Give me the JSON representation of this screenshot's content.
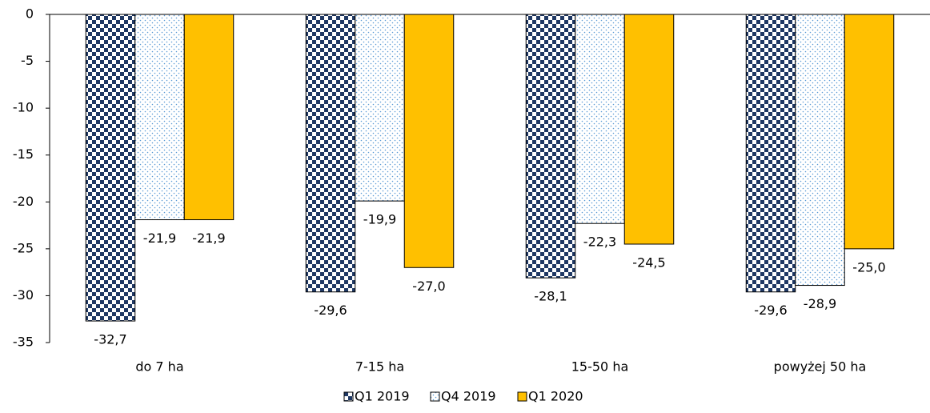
{
  "chart_data": {
    "type": "bar",
    "categories": [
      "do 7 ha",
      "7-15 ha",
      "15-50 ha",
      "powyżej 50 ha"
    ],
    "series": [
      {
        "name": "Q1 2019",
        "color": "#1f3864",
        "values": [
          -32.7,
          -29.6,
          -28.1,
          -29.6
        ],
        "value_labels": [
          "-32,7",
          "-29,6",
          "-28,1",
          "-29,6"
        ]
      },
      {
        "name": "Q4 2019",
        "color": "#5b9bd5",
        "values": [
          -21.9,
          -19.9,
          -22.3,
          -28.9
        ],
        "value_labels": [
          "-21,9",
          "-19,9",
          "-22,3",
          "-28,9"
        ]
      },
      {
        "name": "Q1 2020",
        "color": "#ffc000",
        "values": [
          -21.9,
          -27.0,
          -24.5,
          -25.0
        ],
        "value_labels": [
          "-21,9",
          "-27,0",
          "-24,5",
          "-25,0"
        ]
      }
    ],
    "ylim": [
      -35,
      0
    ],
    "yticks": [
      0,
      -5,
      -10,
      -15,
      -20,
      -25,
      -30,
      -35
    ]
  }
}
